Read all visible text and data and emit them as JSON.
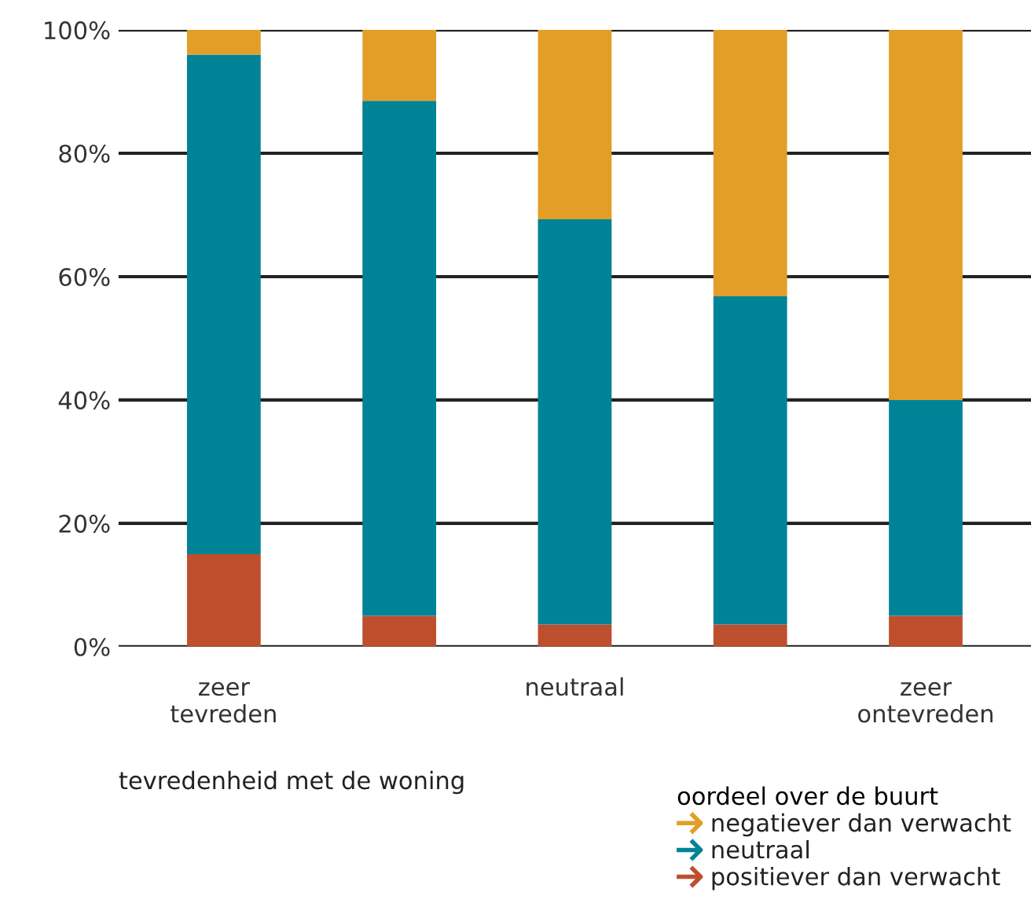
{
  "chart_data": {
    "type": "bar",
    "stacked": true,
    "categories": [
      "zeer\ntevreden",
      null,
      "neutraal",
      null,
      "zeer\nontevreden"
    ],
    "series": [
      {
        "name": "positiever dan verwacht",
        "color": "#be4f2e",
        "values": [
          15,
          5,
          3.6,
          3.6,
          5
        ]
      },
      {
        "name": "neutraal",
        "color": "#008397",
        "values": [
          81,
          83.5,
          65.7,
          53.2,
          35
        ]
      },
      {
        "name": "negatiever dan verwacht",
        "color": "#e29e27",
        "values": [
          4,
          11.5,
          30.7,
          43.2,
          60
        ]
      }
    ],
    "ylim": [
      0,
      100
    ],
    "yticks": [
      {
        "value": 0,
        "label": "0%"
      },
      {
        "value": 20,
        "label": "20%"
      },
      {
        "value": 40,
        "label": "40%"
      },
      {
        "value": 60,
        "label": "60%"
      },
      {
        "value": 80,
        "label": "80%"
      },
      {
        "value": 100,
        "label": "100%"
      }
    ],
    "grid": "y",
    "xlabel": "tevredenheid met de woning",
    "legend_title": "oordeel over de buurt",
    "legend": "bottom right"
  }
}
